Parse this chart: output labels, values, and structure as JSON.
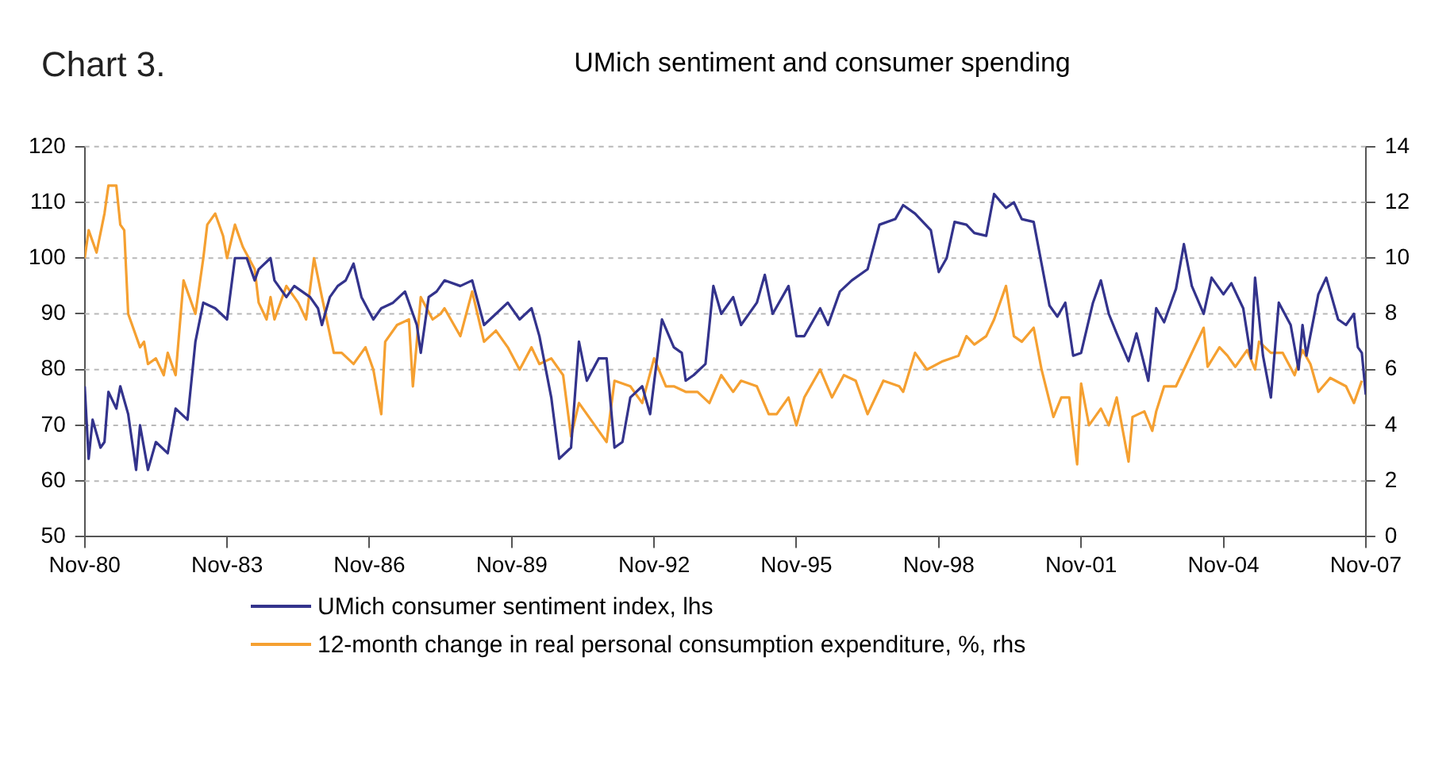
{
  "chart_data": {
    "type": "line",
    "title": "UMich sentiment and consumer spending",
    "annotations": [
      "Chart 3."
    ],
    "xlim": [
      "1980-11",
      "2007-11"
    ],
    "xticks": [
      {
        "value": "1980-11",
        "label": "Nov-80"
      },
      {
        "value": "1983-11",
        "label": "Nov-83"
      },
      {
        "value": "1986-11",
        "label": "Nov-86"
      },
      {
        "value": "1989-11",
        "label": "Nov-89"
      },
      {
        "value": "1992-11",
        "label": "Nov-92"
      },
      {
        "value": "1995-11",
        "label": "Nov-95"
      },
      {
        "value": "1998-11",
        "label": "Nov-98"
      },
      {
        "value": "2001-11",
        "label": "Nov-01"
      },
      {
        "value": "2004-11",
        "label": "Nov-04"
      },
      {
        "value": "2007-11",
        "label": "Nov-07"
      }
    ],
    "ylim": [
      50,
      120
    ],
    "yticks": [
      50,
      60,
      70,
      80,
      90,
      100,
      110,
      120
    ],
    "y2lim": [
      0,
      14
    ],
    "y2ticks": [
      0,
      2,
      4,
      6,
      8,
      10,
      12,
      14
    ],
    "grid": "y",
    "legend": "bottom",
    "marker": "none",
    "line_style": "solid",
    "series": [
      {
        "name": "UMich consumer sentiment index, lhs",
        "color": "#33338c",
        "axis": "y",
        "x": [
          "1980-11",
          "1980-12",
          "1981-01",
          "1981-03",
          "1981-04",
          "1981-05",
          "1981-07",
          "1981-08",
          "1981-10",
          "1981-12",
          "1982-01",
          "1982-03",
          "1982-05",
          "1982-08",
          "1982-10",
          "1983-01",
          "1983-03",
          "1983-05",
          "1983-08",
          "1983-11",
          "1984-01",
          "1984-04",
          "1984-06",
          "1984-07",
          "1984-10",
          "1984-11",
          "1985-02",
          "1985-04",
          "1985-06",
          "1985-08",
          "1985-10",
          "1985-11",
          "1986-01",
          "1986-03",
          "1986-05",
          "1986-07",
          "1986-09",
          "1986-12",
          "1987-02",
          "1987-05",
          "1987-08",
          "1987-11",
          "1987-12",
          "1988-02",
          "1988-04",
          "1988-06",
          "1988-10",
          "1989-01",
          "1989-04",
          "1989-07",
          "1989-10",
          "1990-01",
          "1990-04",
          "1990-06",
          "1990-09",
          "1990-11",
          "1991-02",
          "1991-04",
          "1991-06",
          "1991-09",
          "1991-11",
          "1992-01",
          "1992-03",
          "1992-05",
          "1992-08",
          "1992-10",
          "1993-01",
          "1993-04",
          "1993-06",
          "1993-07",
          "1993-09",
          "1993-12",
          "1994-02",
          "1994-04",
          "1994-07",
          "1994-09",
          "1995-01",
          "1995-03",
          "1995-05",
          "1995-09",
          "1995-11",
          "1996-01",
          "1996-05",
          "1996-07",
          "1996-10",
          "1997-01",
          "1997-05",
          "1997-08",
          "1997-12",
          "1998-02",
          "1998-05",
          "1998-09",
          "1998-11",
          "1999-01",
          "1999-03",
          "1999-06",
          "1999-08",
          "1999-11",
          "2000-01",
          "2000-04",
          "2000-06",
          "2000-08",
          "2000-11",
          "2001-01",
          "2001-03",
          "2001-05",
          "2001-07",
          "2001-09",
          "2001-11",
          "2002-02",
          "2002-04",
          "2002-06",
          "2002-08",
          "2002-11",
          "2003-01",
          "2003-04",
          "2003-06",
          "2003-08",
          "2003-11",
          "2004-01",
          "2004-03",
          "2004-06",
          "2004-08",
          "2004-11",
          "2005-01",
          "2005-04",
          "2005-06",
          "2005-07",
          "2005-09",
          "2005-11",
          "2006-01",
          "2006-04",
          "2006-06",
          "2006-07",
          "2006-08",
          "2006-11",
          "2007-01",
          "2007-04",
          "2007-06",
          "2007-08",
          "2007-09",
          "2007-10",
          "2007-11"
        ],
        "values": [
          77,
          64,
          71,
          66,
          67,
          76,
          73,
          77,
          72,
          62,
          70,
          62,
          67,
          65,
          73,
          71,
          85,
          92,
          91,
          89,
          100,
          100,
          96,
          98,
          100,
          96,
          93,
          95,
          94,
          93,
          91,
          88,
          93,
          95,
          96,
          99,
          93,
          89,
          91,
          92,
          94,
          88,
          83,
          93,
          94,
          96,
          95,
          96,
          88,
          90,
          92,
          89,
          91,
          86,
          75,
          64,
          66,
          85,
          78,
          82,
          82,
          66,
          67,
          75,
          77,
          72,
          89,
          84,
          83,
          78,
          79,
          81,
          95,
          90,
          93,
          88,
          92,
          97,
          90,
          95,
          86,
          86,
          91,
          88,
          94,
          96,
          98,
          106,
          107,
          109.5,
          108,
          105,
          97.5,
          100,
          106.5,
          106,
          104.5,
          104,
          111.5,
          109,
          110,
          107,
          106.5,
          99,
          91.5,
          89.5,
          92,
          82.5,
          83,
          92,
          96,
          90,
          86.5,
          81.5,
          86.5,
          78,
          91,
          88.5,
          94.5,
          102.5,
          95,
          90,
          96.5,
          93.5,
          95.5,
          91,
          82,
          96.5,
          82.5,
          75,
          92,
          88,
          80,
          88,
          82.5,
          93.5,
          96.5,
          89,
          88,
          90,
          84,
          83,
          75.5
        ]
      },
      {
        "name": "12-month change in real personal consumption expenditure, %, rhs",
        "color": "#f5a031",
        "axis": "y2",
        "x": [
          "1980-11",
          "1980-12",
          "1981-02",
          "1981-04",
          "1981-05",
          "1981-07",
          "1981-08",
          "1981-09",
          "1981-10",
          "1982-01",
          "1982-02",
          "1982-03",
          "1982-05",
          "1982-07",
          "1982-08",
          "1982-10",
          "1982-12",
          "1983-01",
          "1983-03",
          "1983-05",
          "1983-06",
          "1983-08",
          "1983-10",
          "1983-11",
          "1984-01",
          "1984-03",
          "1984-06",
          "1984-07",
          "1984-09",
          "1984-10",
          "1984-11",
          "1985-02",
          "1985-03",
          "1985-05",
          "1985-07",
          "1985-09",
          "1985-11",
          "1986-02",
          "1986-04",
          "1986-07",
          "1986-10",
          "1986-12",
          "1987-02",
          "1987-03",
          "1987-06",
          "1987-09",
          "1987-10",
          "1987-12",
          "1988-03",
          "1988-05",
          "1988-06",
          "1988-10",
          "1989-01",
          "1989-04",
          "1989-07",
          "1989-10",
          "1990-01",
          "1990-04",
          "1990-06",
          "1990-09",
          "1990-12",
          "1991-02",
          "1991-04",
          "1991-07",
          "1991-11",
          "1992-01",
          "1992-05",
          "1992-08",
          "1992-11",
          "1993-02",
          "1993-04",
          "1993-07",
          "1993-10",
          "1994-01",
          "1994-04",
          "1994-07",
          "1994-09",
          "1995-01",
          "1995-04",
          "1995-06",
          "1995-09",
          "1995-11",
          "1996-01",
          "1996-05",
          "1996-08",
          "1996-11",
          "1997-02",
          "1997-05",
          "1997-09",
          "1998-01",
          "1998-02",
          "1998-05",
          "1998-08",
          "1998-12",
          "1999-04",
          "1999-06",
          "1999-08",
          "1999-11",
          "2000-01",
          "2000-04",
          "2000-06",
          "2000-08",
          "2000-11",
          "2001-01",
          "2001-04",
          "2001-06",
          "2001-08",
          "2001-10",
          "2001-11",
          "2002-01",
          "2002-04",
          "2002-06",
          "2002-08",
          "2002-11",
          "2002-12",
          "2003-03",
          "2003-05",
          "2003-06",
          "2003-08",
          "2003-11",
          "2004-01",
          "2004-06",
          "2004-07",
          "2004-10",
          "2004-12",
          "2005-02",
          "2005-05",
          "2005-07",
          "2005-08",
          "2005-11",
          "2006-02",
          "2006-05",
          "2006-07",
          "2006-09",
          "2006-11",
          "2007-02",
          "2007-06",
          "2007-08",
          "2007-10"
        ],
        "values": [
          10,
          11,
          10.2,
          11.6,
          12.6,
          12.6,
          11.2,
          11,
          8,
          6.8,
          7,
          6.2,
          6.4,
          5.8,
          6.6,
          5.8,
          9.2,
          8.8,
          8,
          10,
          11.2,
          11.6,
          10.8,
          10,
          11.2,
          10.4,
          9.6,
          8.4,
          7.8,
          8.6,
          7.8,
          9,
          8.8,
          8.4,
          7.8,
          10,
          8.6,
          6.6,
          6.6,
          6.2,
          6.8,
          6,
          4.4,
          7,
          7.6,
          7.8,
          5.4,
          8.6,
          7.8,
          8,
          8.2,
          7.2,
          8.8,
          7,
          7.4,
          6.8,
          6,
          6.8,
          6.2,
          6.4,
          5.8,
          3.6,
          4.8,
          4.2,
          3.4,
          5.6,
          5.4,
          4.8,
          6.4,
          5.4,
          5.4,
          5.2,
          5.2,
          4.8,
          5.8,
          5.2,
          5.6,
          5.4,
          4.4,
          4.4,
          5,
          4,
          5,
          6,
          5,
          5.8,
          5.6,
          4.4,
          5.6,
          5.4,
          5.2,
          6.6,
          6,
          6.3,
          6.5,
          7.2,
          6.9,
          7.2,
          7.8,
          9,
          7.2,
          7,
          7.5,
          6,
          4.3,
          5,
          5,
          2.6,
          5.5,
          4,
          4.6,
          4,
          5,
          2.7,
          4.3,
          4.5,
          3.8,
          4.5,
          5.4,
          5.4,
          6,
          7.5,
          6.1,
          6.8,
          6.5,
          6.1,
          6.7,
          6,
          7,
          6.6,
          6.6,
          5.8,
          6.7,
          6.2,
          5.2,
          5.7,
          5.4,
          4.8,
          5.6
        ]
      }
    ]
  }
}
